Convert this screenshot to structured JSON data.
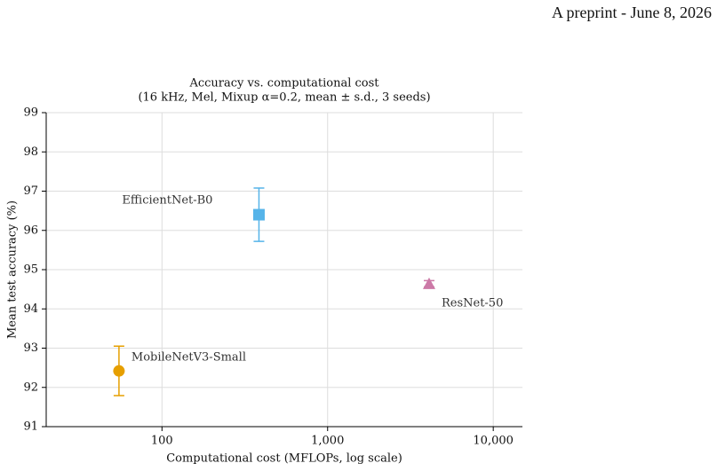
{
  "header": "A preprint - June 8, 2026",
  "chart_data": {
    "type": "scatter",
    "title": "Accuracy vs. computational cost",
    "subtitle": "(16 kHz, Mel, Mixup α=0.2, mean ± s.d., 3 seeds)",
    "x_label": "Computational cost (MFLOPs, log scale)",
    "y_label": "Mean test accuracy (%)",
    "x_scale": "log",
    "grid": true,
    "xlim": [
      20,
      15000
    ],
    "ylim": [
      91,
      99
    ],
    "xticks": [
      100,
      {
        "value": 1000,
        "label": "1,000"
      },
      {
        "value": 10000,
        "label": "10,000"
      }
    ],
    "yticks": [
      91,
      92,
      93,
      94,
      95,
      96,
      97,
      98,
      99
    ],
    "series": [
      {
        "name": "MobileNetV3-Small",
        "color": "#e69f00",
        "marker": "circle",
        "x": [
          55
        ],
        "values": [
          92.42
        ],
        "errors": [
          0.63
        ]
      },
      {
        "name": "EfficientNet-B0",
        "color": "#56b4e9",
        "marker": "square",
        "x": [
          385
        ],
        "values": [
          96.4
        ],
        "errors": [
          0.68
        ]
      },
      {
        "name": "ResNet-50",
        "color": "#cc79a7",
        "marker": "triangle",
        "x": [
          4100
        ],
        "values": [
          94.64
        ],
        "errors": [
          0.08
        ]
      }
    ]
  }
}
